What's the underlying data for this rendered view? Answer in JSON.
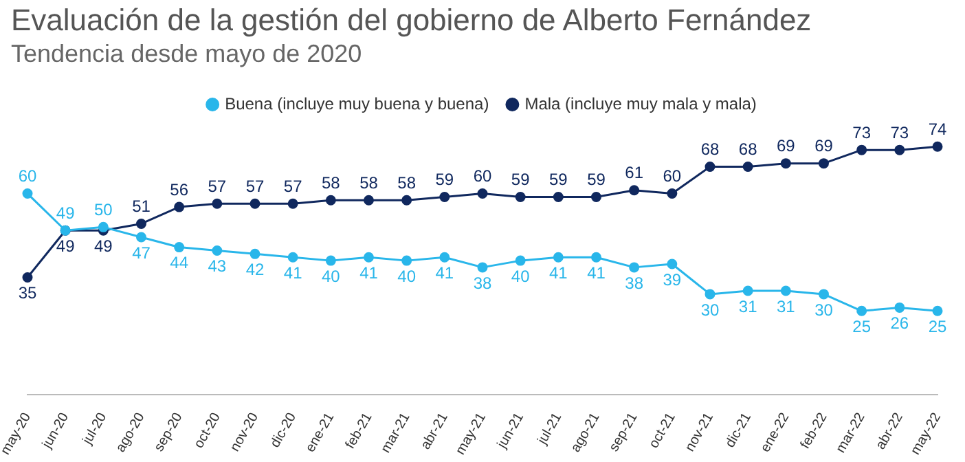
{
  "chart_data": {
    "type": "line",
    "title": "Evaluación de la gestión del gobierno de Alberto Fernández",
    "subtitle": "Tendencia desde mayo de 2020",
    "categories": [
      "may-20",
      "jun-20",
      "jul-20",
      "ago-20",
      "sep-20",
      "oct-20",
      "nov-20",
      "dic-20",
      "ene-21",
      "feb-21",
      "mar-21",
      "abr-21",
      "may-21",
      "jun-21",
      "jul-21",
      "ago-21",
      "sep-21",
      "oct-21",
      "nov-21",
      "dic-21",
      "ene-22",
      "feb-22",
      "mar-22",
      "abr-22",
      "may-22"
    ],
    "series": [
      {
        "name": "Buena (incluye muy buena y buena)",
        "color": "#29b6ea",
        "values": [
          60,
          49,
          50,
          47,
          44,
          43,
          42,
          41,
          40,
          41,
          40,
          41,
          38,
          40,
          41,
          41,
          38,
          39,
          30,
          31,
          31,
          30,
          25,
          26,
          25
        ]
      },
      {
        "name": "Mala (incluye muy mala y mala)",
        "color": "#10285e",
        "values": [
          35,
          49,
          49,
          51,
          56,
          57,
          57,
          57,
          58,
          58,
          58,
          59,
          60,
          59,
          59,
          59,
          61,
          60,
          68,
          68,
          69,
          69,
          73,
          73,
          74
        ]
      }
    ],
    "data_labels": true,
    "legend": "top",
    "marker": "circle",
    "grid": false,
    "tick_labels": "x"
  }
}
